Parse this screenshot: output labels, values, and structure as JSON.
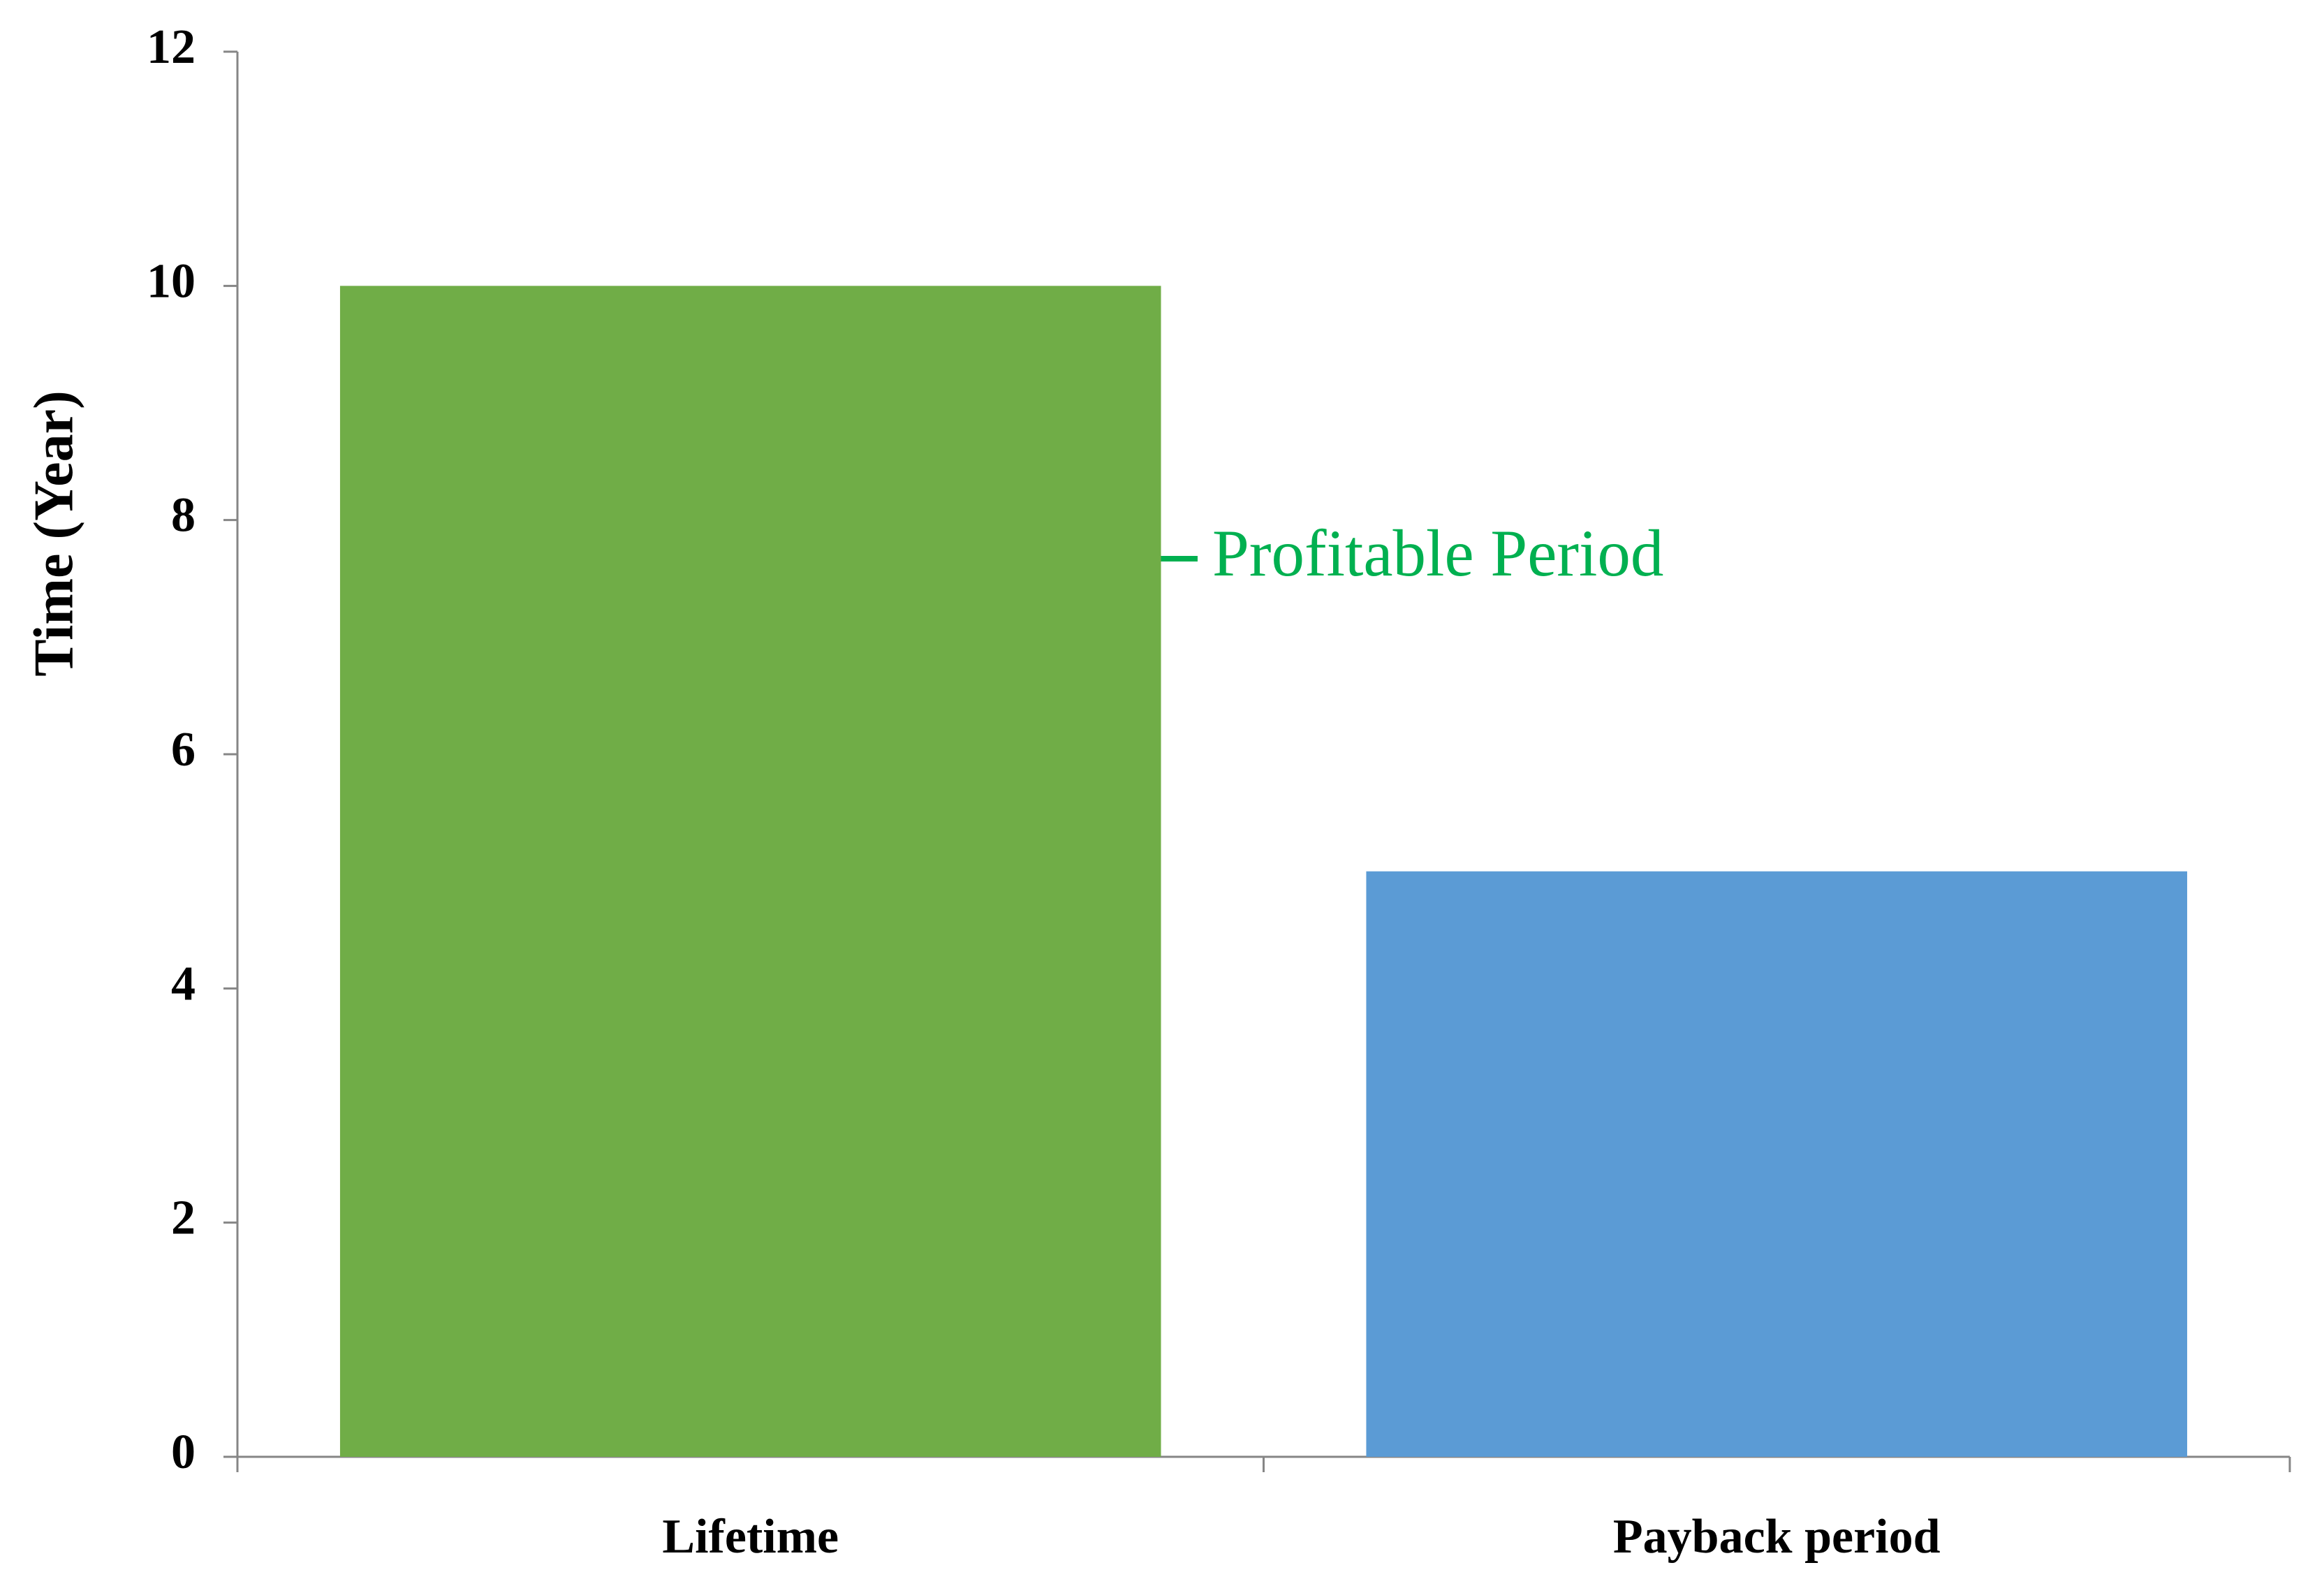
{
  "chart_data": {
    "type": "bar",
    "y_label": "Time (Year)",
    "categories": [
      "Lifetime",
      "Payback period"
    ],
    "values": [
      10,
      5
    ],
    "colors": [
      "#70ad47",
      "#5b9bd5"
    ],
    "ylim": [
      0,
      12
    ],
    "yticks": [
      0,
      2,
      4,
      6,
      8,
      10,
      12
    ],
    "grid": false,
    "annotation": {
      "text": "Profitable Period",
      "color": "#00b050"
    }
  }
}
